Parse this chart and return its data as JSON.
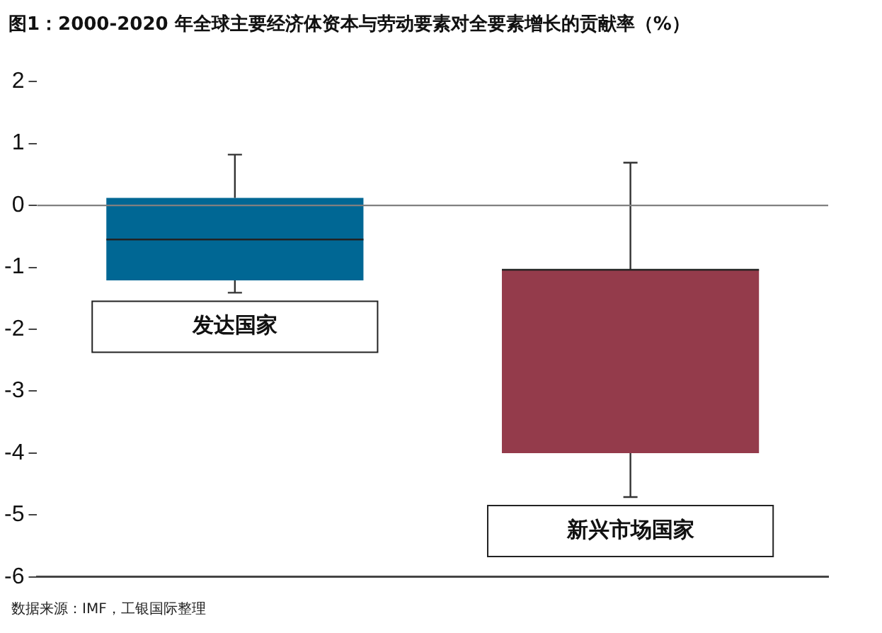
{
  "chart_data": {
    "type": "box",
    "title": "图1：2000-2020 年全球主要经济体资本与劳动要素对全要素增长的贡献率（%）",
    "categories": [
      "发达国家",
      "新兴市场国家"
    ],
    "boxes": [
      {
        "low": -1.41,
        "q1": -1.21,
        "median": -0.55,
        "q3": 0.12,
        "high": 0.82
      },
      {
        "low": -4.71,
        "q1": -4.0,
        "median": -1.04,
        "q3": -1.04,
        "high": 0.69
      }
    ],
    "colors": [
      "#006794",
      "#943b4b"
    ],
    "ylim": [
      -6,
      2
    ],
    "yticks": [
      -6,
      -5,
      -4,
      -3,
      -2,
      -1,
      0,
      1,
      2
    ],
    "ref_lines": [
      {
        "axis": "y",
        "value": 0,
        "color": "#808080"
      }
    ],
    "grid": false,
    "legend": false,
    "annotations": [
      "数据来源：IMF，工银国际整理"
    ]
  }
}
